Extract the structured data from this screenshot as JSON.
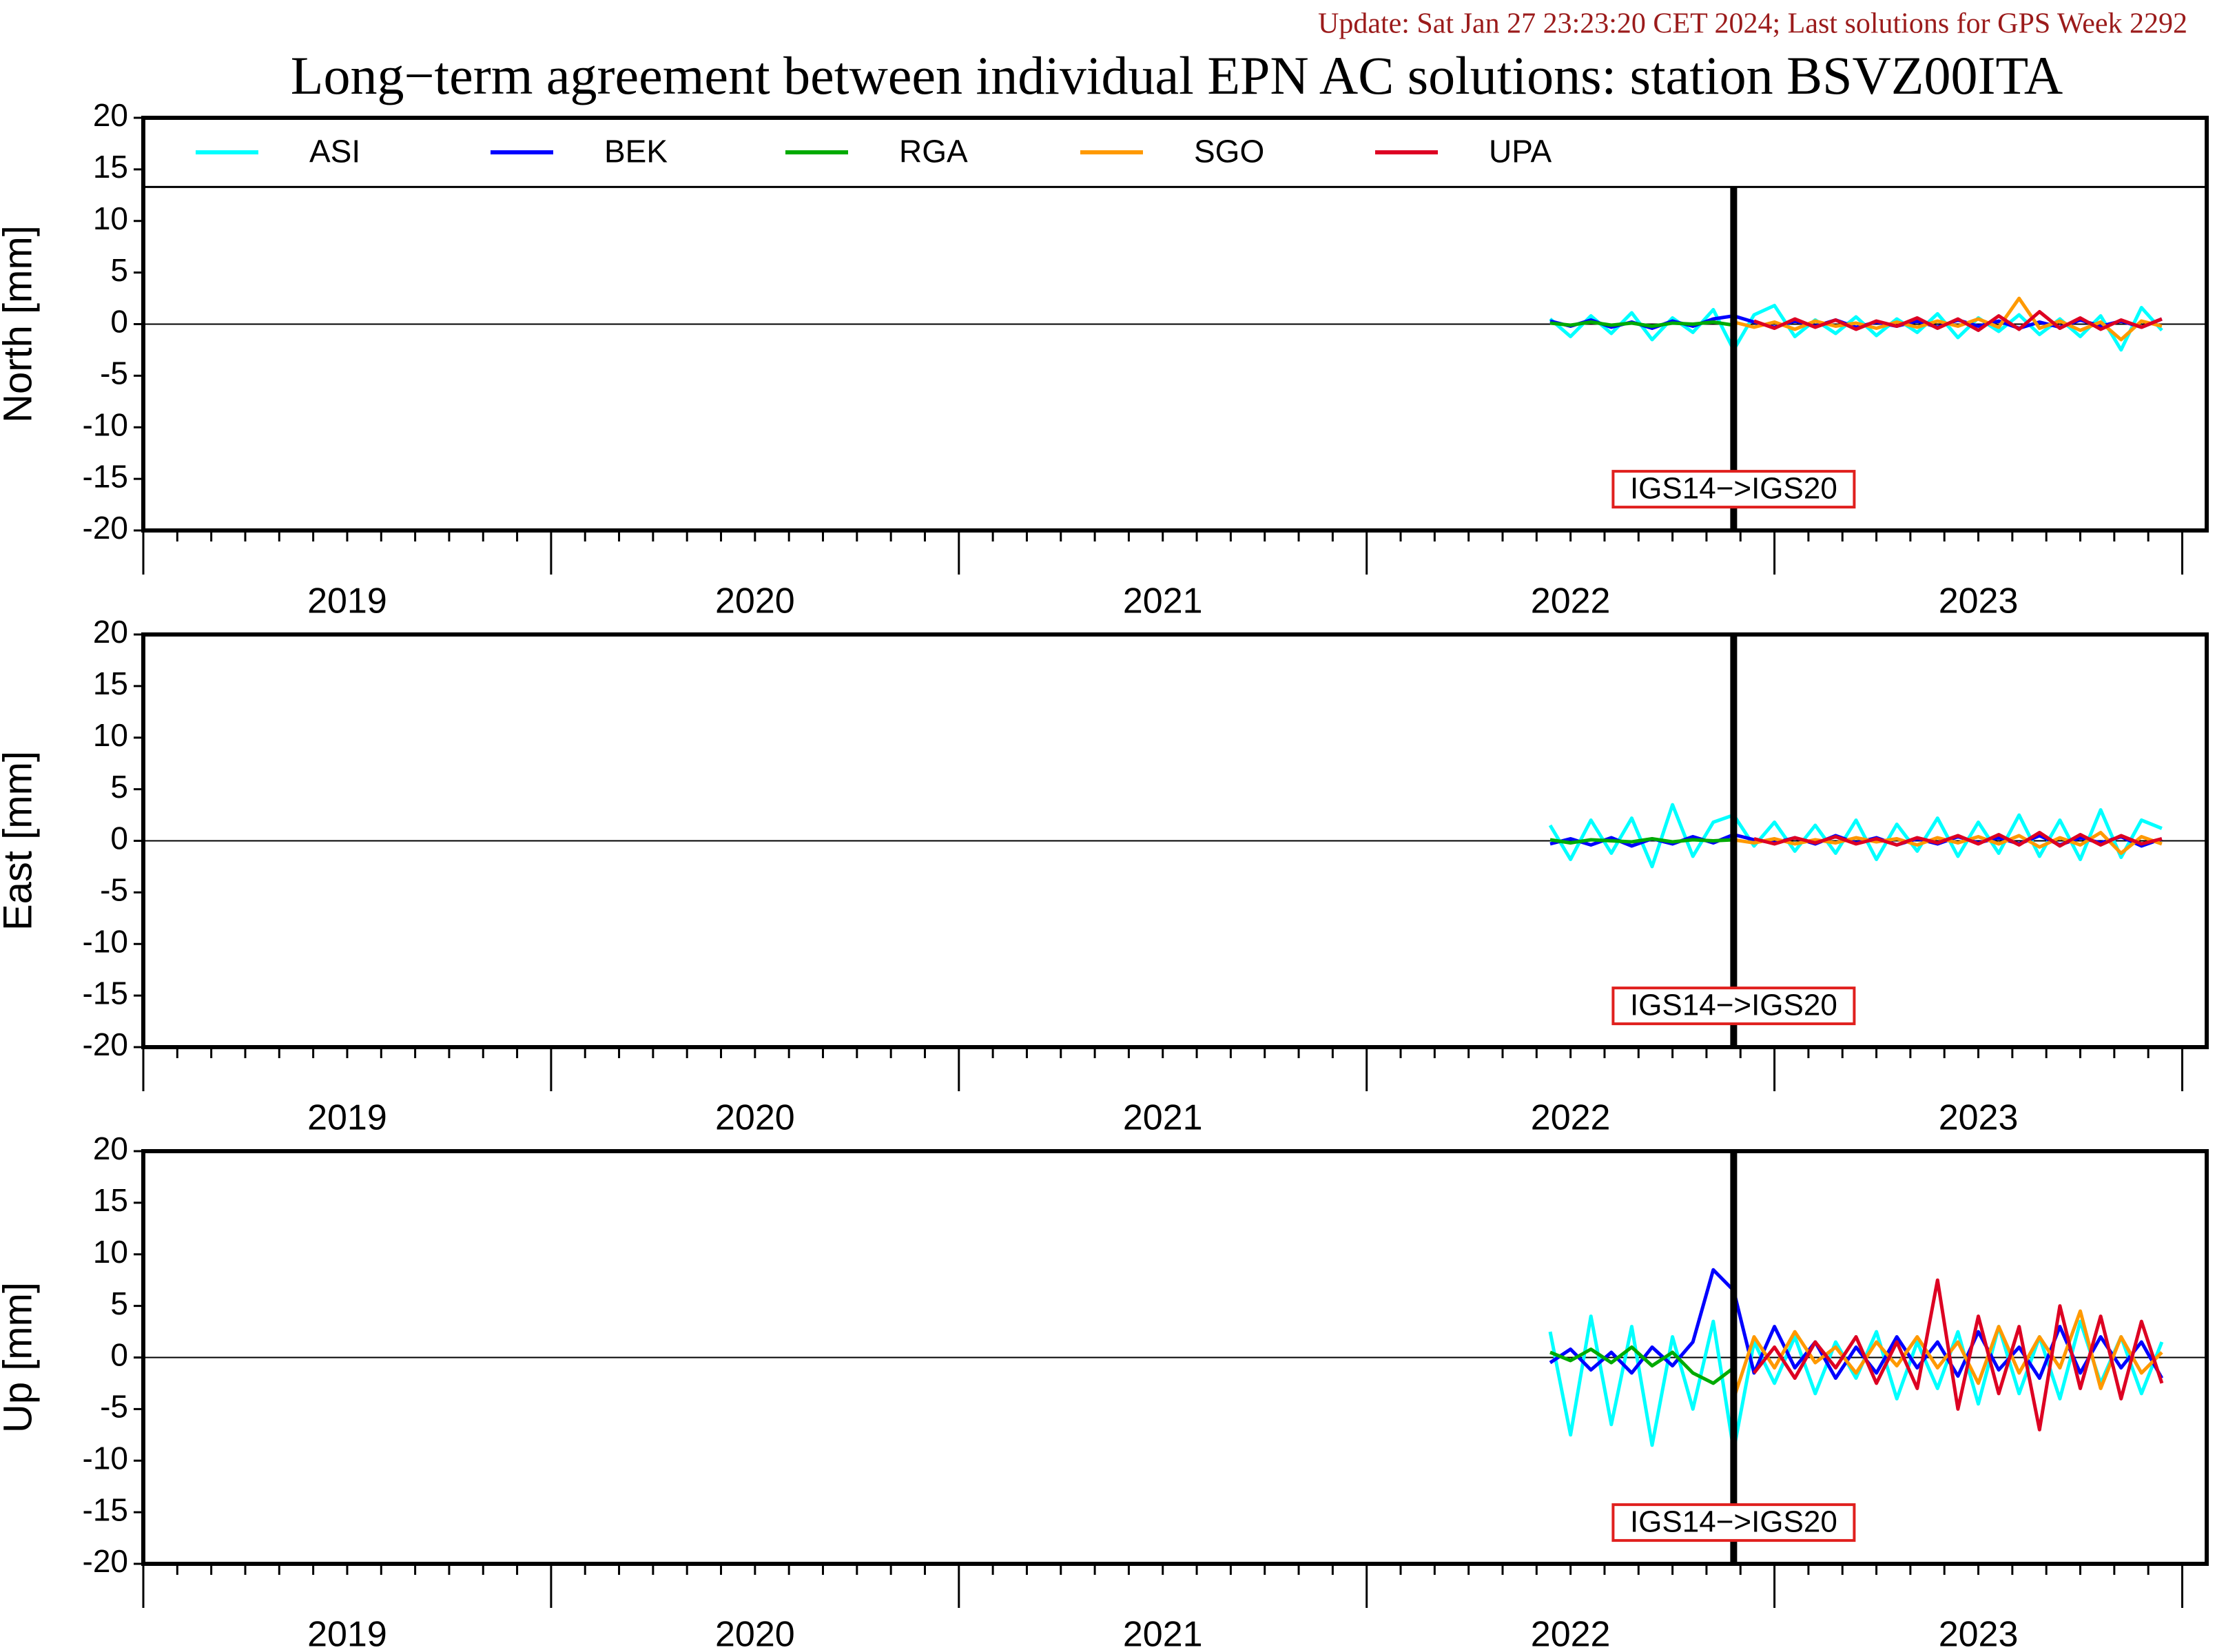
{
  "header": {
    "update": "Update: Sat Jan 27 23:23:20 CET 2024; Last solutions for GPS Week 2292",
    "title": "Long−term agreement between individual EPN AC solutions: station BSVZ00ITA"
  },
  "chart_data": [
    {
      "type": "line",
      "ylabel": "North [mm]",
      "ylim": [
        -20,
        20
      ],
      "yticks": [
        -20,
        -15,
        -10,
        -5,
        0,
        5,
        10,
        15,
        20
      ],
      "xlim": [
        2019,
        2024.06
      ],
      "year_boundaries": [
        2019,
        2020,
        2021,
        2022,
        2023,
        2024
      ],
      "xticks": [
        {
          "value": 2019.5,
          "label": "2019"
        },
        {
          "value": 2020.5,
          "label": "2020"
        },
        {
          "value": 2021.5,
          "label": "2021"
        },
        {
          "value": 2022.5,
          "label": "2022"
        },
        {
          "value": 2023.5,
          "label": "2023"
        }
      ],
      "reference_line": 0,
      "event_x": 2022.9,
      "annotation": "IGS14−>IGS20",
      "legend": "top",
      "legend_separator": 13.3,
      "x": [
        2022.45,
        2022.5,
        2022.55,
        2022.6,
        2022.65,
        2022.7,
        2022.75,
        2022.8,
        2022.85,
        2022.9,
        2022.95,
        2023.0,
        2023.05,
        2023.1,
        2023.15,
        2023.2,
        2023.25,
        2023.3,
        2023.35,
        2023.4,
        2023.45,
        2023.5,
        2023.55,
        2023.6,
        2023.65,
        2023.7,
        2023.75,
        2023.8,
        2023.85,
        2023.9,
        2023.95
      ],
      "series": [
        {
          "name": "ASI",
          "color": "#00ffff",
          "values": [
            0.5,
            -1.2,
            0.8,
            -0.9,
            1.1,
            -1.5,
            0.6,
            -0.8,
            1.4,
            -2.5,
            0.9,
            1.8,
            -1.2,
            0.4,
            -0.9,
            0.7,
            -1.1,
            0.5,
            -0.8,
            1.0,
            -1.3,
            0.6,
            -0.7,
            0.9,
            -1.0,
            0.5,
            -1.2,
            0.8,
            -2.5,
            1.6,
            -0.6
          ]
        },
        {
          "name": "BEK",
          "color": "#0000ff",
          "values": [
            0.3,
            -0.2,
            0.4,
            -0.3,
            0.2,
            -0.4,
            0.3,
            -0.2,
            0.5,
            0.8,
            0.2,
            -0.3,
            0.3,
            -0.2,
            0.4,
            -0.3,
            0.2,
            -0.2,
            0.3,
            -0.3,
            0.4,
            -0.2,
            0.3,
            -0.4,
            0.2,
            -0.3,
            0.4,
            -0.2,
            0.3,
            -0.3,
            0.5
          ]
        },
        {
          "name": "RGA",
          "color": "#00aa00",
          "values": [
            0.1,
            -0.1,
            0.2,
            -0.1,
            0.1,
            -0.2,
            0.1,
            0.0,
            0.2,
            -0.1,
            null,
            null,
            null,
            null,
            null,
            null,
            null,
            null,
            null,
            null,
            null,
            null,
            null,
            null,
            null,
            null,
            null,
            null,
            null,
            null,
            null
          ]
        },
        {
          "name": "SGO",
          "color": "#ff9900",
          "values": [
            null,
            null,
            null,
            null,
            null,
            null,
            null,
            null,
            null,
            0.2,
            -0.3,
            0.2,
            -0.5,
            0.3,
            -0.2,
            0.1,
            -0.4,
            0.2,
            -0.3,
            0.3,
            -0.2,
            0.5,
            -0.3,
            2.5,
            -0.4,
            0.3,
            -0.6,
            0.2,
            -1.5,
            0.3,
            -0.2
          ]
        },
        {
          "name": "UPA",
          "color": "#dd0022",
          "values": [
            null,
            null,
            null,
            null,
            null,
            null,
            null,
            null,
            null,
            null,
            0.3,
            -0.4,
            0.5,
            -0.3,
            0.4,
            -0.5,
            0.3,
            -0.2,
            0.6,
            -0.4,
            0.5,
            -0.6,
            0.8,
            -0.5,
            1.2,
            -0.4,
            0.6,
            -0.5,
            0.4,
            -0.3,
            0.5
          ]
        }
      ]
    },
    {
      "type": "line",
      "ylabel": "East [mm]",
      "ylim": [
        -20,
        20
      ],
      "yticks": [
        -20,
        -15,
        -10,
        -5,
        0,
        5,
        10,
        15,
        20
      ],
      "xlim": [
        2019,
        2024.06
      ],
      "year_boundaries": [
        2019,
        2020,
        2021,
        2022,
        2023,
        2024
      ],
      "xticks": [
        {
          "value": 2019.5,
          "label": "2019"
        },
        {
          "value": 2020.5,
          "label": "2020"
        },
        {
          "value": 2021.5,
          "label": "2021"
        },
        {
          "value": 2022.5,
          "label": "2022"
        },
        {
          "value": 2023.5,
          "label": "2023"
        }
      ],
      "reference_line": 0,
      "event_x": 2022.9,
      "annotation": "IGS14−>IGS20",
      "x": [
        2022.45,
        2022.5,
        2022.55,
        2022.6,
        2022.65,
        2022.7,
        2022.75,
        2022.8,
        2022.85,
        2022.9,
        2022.95,
        2023.0,
        2023.05,
        2023.1,
        2023.15,
        2023.2,
        2023.25,
        2023.3,
        2023.35,
        2023.4,
        2023.45,
        2023.5,
        2023.55,
        2023.6,
        2023.65,
        2023.7,
        2023.75,
        2023.8,
        2023.85,
        2023.9,
        2023.95
      ],
      "series": [
        {
          "color": "#00ffff",
          "values": [
            1.5,
            -1.8,
            2.0,
            -1.2,
            2.2,
            -2.5,
            3.5,
            -1.5,
            1.8,
            2.5,
            -0.5,
            1.8,
            -1.0,
            1.5,
            -1.2,
            2.0,
            -1.8,
            1.6,
            -1.0,
            2.2,
            -1.5,
            1.8,
            -1.2,
            2.5,
            -1.5,
            2.0,
            -1.8,
            3.0,
            -1.6,
            2.0,
            1.2
          ]
        },
        {
          "color": "#0000ff",
          "values": [
            -0.3,
            0.2,
            -0.4,
            0.3,
            -0.5,
            0.2,
            -0.3,
            0.4,
            -0.2,
            0.6,
            0.1,
            -0.2,
            0.3,
            -0.3,
            0.5,
            -0.2,
            0.3,
            -0.4,
            0.2,
            -0.3,
            0.4,
            -0.2,
            0.3,
            -0.3,
            0.5,
            -0.4,
            0.3,
            -0.2,
            0.4,
            -0.5,
            0.2
          ]
        },
        {
          "color": "#00aa00",
          "values": [
            0.1,
            -0.2,
            0.1,
            0.0,
            -0.1,
            0.2,
            -0.1,
            0.1,
            0.0,
            0.1,
            null,
            null,
            null,
            null,
            null,
            null,
            null,
            null,
            null,
            null,
            null,
            null,
            null,
            null,
            null,
            null,
            null,
            null,
            null,
            null,
            null
          ]
        },
        {
          "color": "#ff9900",
          "values": [
            null,
            null,
            null,
            null,
            null,
            null,
            null,
            null,
            null,
            0.1,
            -0.2,
            0.2,
            -0.3,
            0.1,
            -0.2,
            0.3,
            -0.1,
            0.2,
            -0.4,
            0.3,
            -0.2,
            0.4,
            -0.3,
            0.5,
            -0.6,
            0.3,
            -0.4,
            0.8,
            -1.2,
            0.4,
            -0.3
          ]
        },
        {
          "color": "#dd0022",
          "values": [
            null,
            null,
            null,
            null,
            null,
            null,
            null,
            null,
            null,
            null,
            0.2,
            -0.3,
            0.3,
            -0.2,
            0.4,
            -0.3,
            0.2,
            -0.4,
            0.3,
            -0.2,
            0.5,
            -0.3,
            0.6,
            -0.4,
            0.8,
            -0.5,
            0.6,
            -0.4,
            0.5,
            -0.3,
            0.2
          ]
        }
      ]
    },
    {
      "type": "line",
      "ylabel": "Up [mm]",
      "ylim": [
        -20,
        20
      ],
      "yticks": [
        -20,
        -15,
        -10,
        -5,
        0,
        5,
        10,
        15,
        20
      ],
      "xlim": [
        2019,
        2024.06
      ],
      "year_boundaries": [
        2019,
        2020,
        2021,
        2022,
        2023,
        2024
      ],
      "xticks": [
        {
          "value": 2019.5,
          "label": "2019"
        },
        {
          "value": 2020.5,
          "label": "2020"
        },
        {
          "value": 2021.5,
          "label": "2021"
        },
        {
          "value": 2022.5,
          "label": "2022"
        },
        {
          "value": 2023.5,
          "label": "2023"
        }
      ],
      "reference_line": 0,
      "event_x": 2022.9,
      "annotation": "IGS14−>IGS20",
      "x": [
        2022.45,
        2022.5,
        2022.55,
        2022.6,
        2022.65,
        2022.7,
        2022.75,
        2022.8,
        2022.85,
        2022.9,
        2022.95,
        2023.0,
        2023.05,
        2023.1,
        2023.15,
        2023.2,
        2023.25,
        2023.3,
        2023.35,
        2023.4,
        2023.45,
        2023.5,
        2023.55,
        2023.6,
        2023.65,
        2023.7,
        2023.75,
        2023.8,
        2023.85,
        2023.9,
        2023.95
      ],
      "series": [
        {
          "color": "#00ffff",
          "values": [
            2.5,
            -7.5,
            4.0,
            -6.5,
            3.0,
            -8.5,
            2.0,
            -5.0,
            3.5,
            -9.0,
            1.5,
            -2.5,
            2.0,
            -3.5,
            1.5,
            -2.0,
            2.5,
            -4.0,
            1.5,
            -3.0,
            2.5,
            -4.5,
            3.0,
            -3.5,
            2.0,
            -4.0,
            3.5,
            -2.5,
            2.0,
            -3.5,
            1.5
          ]
        },
        {
          "color": "#0000ff",
          "values": [
            -0.5,
            0.8,
            -1.2,
            0.5,
            -1.5,
            1.0,
            -0.8,
            1.5,
            8.5,
            6.5,
            -1.5,
            3.0,
            -1.0,
            1.5,
            -2.0,
            1.0,
            -1.5,
            2.0,
            -1.0,
            1.5,
            -1.8,
            2.5,
            -1.2,
            1.0,
            -2.0,
            3.0,
            -1.5,
            2.0,
            -1.0,
            1.5,
            -2.0
          ]
        },
        {
          "color": "#00aa00",
          "values": [
            0.5,
            -0.3,
            0.8,
            -0.5,
            1.0,
            -0.8,
            0.5,
            -1.5,
            -2.5,
            -1.0,
            null,
            null,
            null,
            null,
            null,
            null,
            null,
            null,
            null,
            null,
            null,
            null,
            null,
            null,
            null,
            null,
            null,
            null,
            null,
            null,
            null
          ]
        },
        {
          "color": "#ff9900",
          "values": [
            null,
            null,
            null,
            null,
            null,
            null,
            null,
            null,
            null,
            -4.0,
            2.0,
            -1.0,
            2.5,
            -0.5,
            1.0,
            -1.5,
            1.5,
            -0.8,
            2.0,
            -1.0,
            1.5,
            -2.5,
            3.0,
            -1.5,
            2.0,
            -1.0,
            4.5,
            -3.0,
            2.0,
            -1.5,
            0.5
          ]
        },
        {
          "color": "#dd0022",
          "values": [
            null,
            null,
            null,
            null,
            null,
            null,
            null,
            null,
            null,
            null,
            -1.5,
            1.0,
            -2.0,
            1.5,
            -1.0,
            2.0,
            -2.5,
            1.5,
            -3.0,
            7.5,
            -5.0,
            4.0,
            -3.5,
            3.0,
            -7.0,
            5.0,
            -3.0,
            4.0,
            -4.0,
            3.5,
            -2.5
          ]
        }
      ]
    }
  ]
}
